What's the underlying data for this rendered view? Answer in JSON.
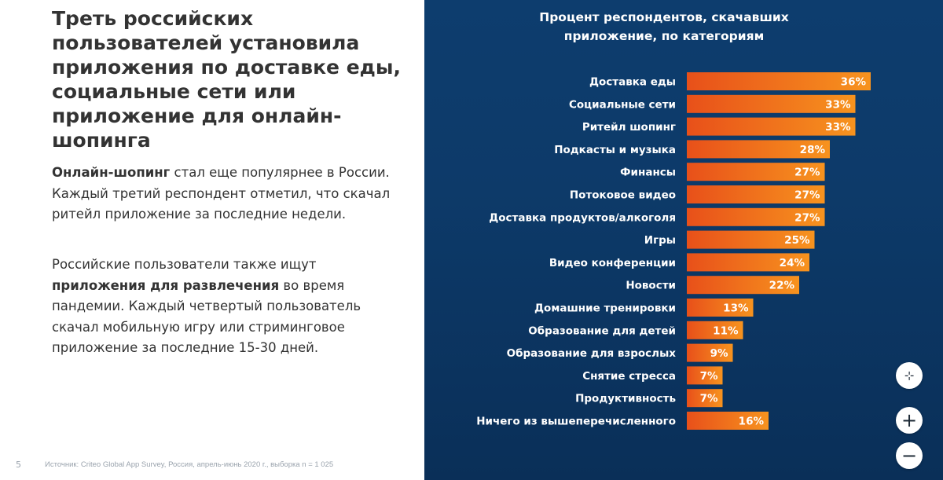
{
  "left": {
    "headline": "Треть российских пользователей установила приложения по доставке еды, социальные сети или приложение для онлайн-шопинга",
    "para1": {
      "bold": "Онлайн-шопинг",
      "text": " стал еще популярнее в России. Каждый третий респондент отметил, что скачал ритейл приложение за последние недели."
    },
    "para2": {
      "text_before": "Российские пользователи также ищут ",
      "bold": "приложения для развлечения",
      "text_after": " во время пандемии. Каждый четвертый пользователь скачал мобильную игру или стриминговое приложение за последние 15-30 дней."
    },
    "page_number": "5",
    "source": "Источник: Criteo Global App Survey, Россия, апрель-июнь 2020 г., выборка n = 1 025"
  },
  "chart_data": {
    "type": "bar",
    "orientation": "horizontal",
    "title": "Процент респондентов, скачавших приложение, по категориям",
    "categories": [
      "Доставка еды",
      "Социальные сети",
      "Ритейл шопинг",
      "Подкасты и музыка",
      "Финансы",
      "Потоковое видео",
      "Доставка продуктов/алкоголя",
      "Игры",
      "Видео конференции",
      "Новости",
      "Домашние тренировки",
      "Образование для детей",
      "Образование для взрослых",
      "Снятие стресса",
      "Продуктивность",
      "Ничего из вышеперечисленного"
    ],
    "values": [
      36,
      33,
      33,
      28,
      27,
      27,
      27,
      25,
      24,
      22,
      13,
      11,
      9,
      7,
      7,
      16
    ],
    "value_labels": [
      "36%",
      "33%",
      "33%",
      "28%",
      "27%",
      "27%",
      "27%",
      "25%",
      "24%",
      "22%",
      "13%",
      "11%",
      "9%",
      "7%",
      "7%",
      "16%"
    ],
    "xlim": [
      0,
      36
    ],
    "grid": false,
    "legend": "none",
    "colors": {
      "bar_start": "#e8501a",
      "bar_end": "#f7931e",
      "background": "#0d3b6b",
      "text": "#ffffff"
    }
  },
  "controls": {
    "fit_icon": "collapse-icon",
    "zoom_in_icon": "plus-icon",
    "zoom_out_icon": "minus-icon",
    "fit_glyph": "⊹",
    "zoom_in_glyph": "+",
    "zoom_out_glyph": "−"
  }
}
